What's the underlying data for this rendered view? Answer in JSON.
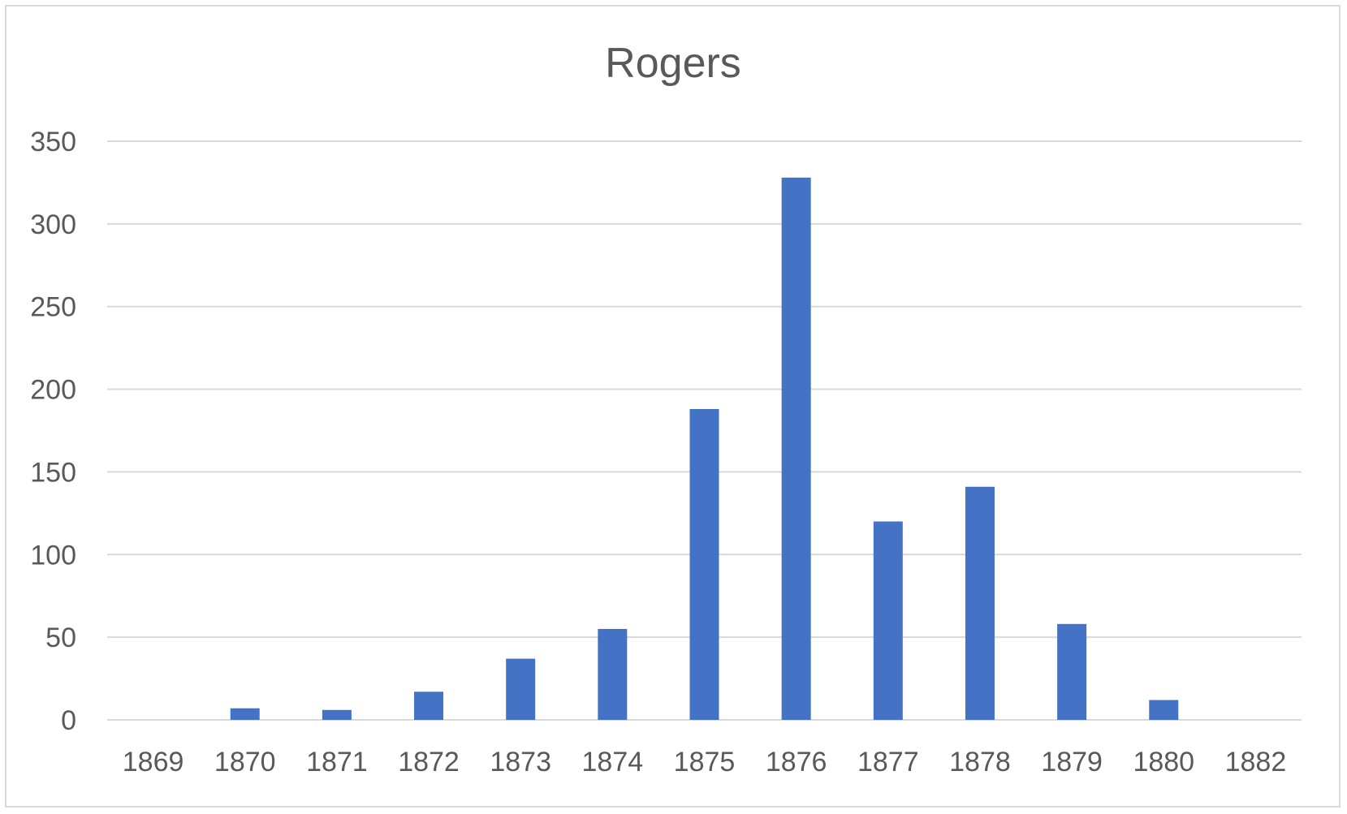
{
  "chart_data": {
    "type": "bar",
    "title": "Rogers",
    "xlabel": "",
    "ylabel": "",
    "categories": [
      "1869",
      "1870",
      "1871",
      "1872",
      "1873",
      "1874",
      "1875",
      "1876",
      "1877",
      "1878",
      "1879",
      "1880",
      "1882"
    ],
    "values": [
      0,
      7,
      6,
      17,
      37,
      55,
      188,
      328,
      120,
      141,
      58,
      12,
      0
    ],
    "ylim": [
      0,
      350
    ],
    "yticks": [
      0,
      50,
      100,
      150,
      200,
      250,
      300,
      350
    ],
    "grid": true,
    "legend": "none",
    "colors": {
      "bar": "#4472c4",
      "grid": "#d9d9d9",
      "text": "#595959",
      "border": "#d9d9d9"
    }
  }
}
